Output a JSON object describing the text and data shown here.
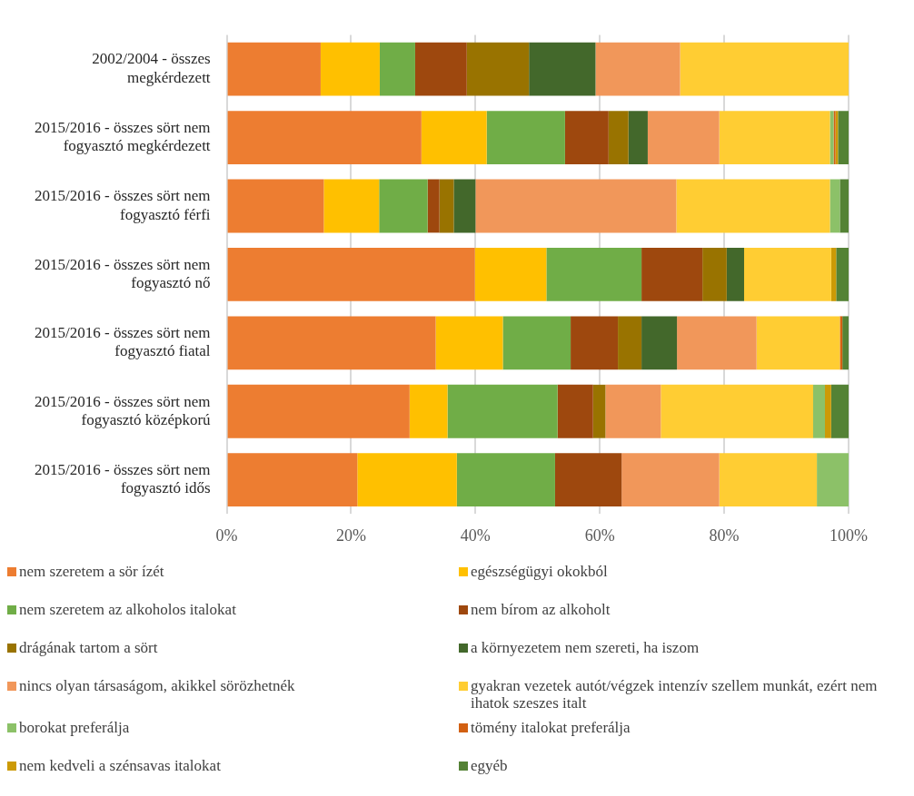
{
  "chart_data": {
    "type": "bar",
    "orientation": "horizontal",
    "stacked": true,
    "categories": [
      "2002/2004 - összes megkérdezett",
      "2015/2016 - összes sört nem fogyasztó megkérdezett",
      "2015/2016 - összes sört nem fogyasztó férfi",
      "2015/2016 - összes sört nem fogyasztó nő",
      "2015/2016 - összes sört nem fogyasztó fiatal",
      "2015/2016 - összes sört nem fogyasztó középkorú",
      "2015/2016 - összes sört nem fogyasztó idős"
    ],
    "series": [
      {
        "name": "nem szeretem a sör ízét",
        "color": "#ed7d31",
        "values": [
          15.1,
          31.3,
          15.6,
          39.9,
          33.6,
          29.4,
          21.0
        ]
      },
      {
        "name": "egészségügyi okokból",
        "color": "#ffc000",
        "values": [
          9.5,
          10.5,
          8.9,
          11.5,
          10.8,
          6.1,
          16.0
        ]
      },
      {
        "name": "nem szeretem az alkoholos italokat",
        "color": "#70ad47",
        "values": [
          5.7,
          12.6,
          7.8,
          15.3,
          10.9,
          17.7,
          15.8
        ]
      },
      {
        "name": "nem bírom az alkoholt",
        "color": "#9e480e",
        "values": [
          8.3,
          7.0,
          1.9,
          9.8,
          7.6,
          5.7,
          10.7
        ]
      },
      {
        "name": "drágának tartom a sört",
        "color": "#997300",
        "values": [
          10.0,
          3.2,
          2.3,
          3.9,
          3.8,
          2.0,
          0
        ]
      },
      {
        "name": "a környezetem nem szereti, ha iszom",
        "color": "#43682b",
        "values": [
          10.7,
          3.1,
          3.5,
          2.8,
          5.7,
          0,
          0
        ]
      },
      {
        "name": "nincs olyan társaságom, akikkel sörözhetnék",
        "color": "#f1975a",
        "values": [
          13.6,
          11.5,
          32.3,
          0,
          12.8,
          8.9,
          15.7
        ]
      },
      {
        "name": "gyakran vezetek autót/végzek intenzív szellem munkát, ezért nem ihatok szeszes italt",
        "color": "#ffcd33",
        "values": [
          27.1,
          17.8,
          24.7,
          14.0,
          13.4,
          24.5,
          15.7
        ]
      },
      {
        "name": "borokat preferálja",
        "color": "#8cc168",
        "values": [
          0,
          0.6,
          1.6,
          0,
          0,
          1.9,
          5.1
        ]
      },
      {
        "name": "tömény italokat preferálja",
        "color": "#d26012",
        "values": [
          0,
          0.3,
          0,
          0,
          0.4,
          0,
          0
        ]
      },
      {
        "name": "nem kedveli a szénsavas italokat",
        "color": "#cc9a06",
        "values": [
          0,
          0.4,
          0,
          0.8,
          0,
          1.0,
          0
        ]
      },
      {
        "name": "egyéb",
        "color": "#548235",
        "values": [
          0,
          1.7,
          1.4,
          2.0,
          1.0,
          2.8,
          0
        ]
      }
    ],
    "xlim": [
      0,
      100
    ],
    "xticks": [
      {
        "value": 0,
        "label": "0%"
      },
      {
        "value": 20,
        "label": "20%"
      },
      {
        "value": 40,
        "label": "40%"
      },
      {
        "value": 60,
        "label": "60%"
      },
      {
        "value": 80,
        "label": "80%"
      },
      {
        "value": 100,
        "label": "100%"
      }
    ],
    "grid": "x",
    "legend": "bottom"
  }
}
